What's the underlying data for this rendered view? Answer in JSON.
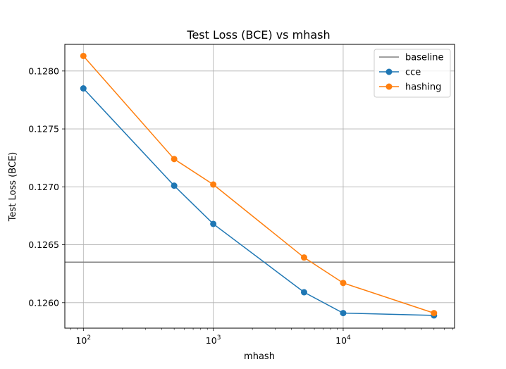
{
  "chart_data": {
    "type": "line",
    "title": "Test Loss (BCE) vs mhash",
    "xlabel": "mhash",
    "ylabel": "Test Loss (BCE)",
    "xscale": "log",
    "xlim": [
      72,
      72000
    ],
    "ylim": [
      0.12578,
      0.12823
    ],
    "x_ticks": [
      {
        "value": 100,
        "base": "10",
        "exp": "2"
      },
      {
        "value": 1000,
        "base": "10",
        "exp": "3"
      },
      {
        "value": 10000,
        "base": "10",
        "exp": "4"
      }
    ],
    "y_ticks": [
      {
        "value": 0.126,
        "label": "0.1260"
      },
      {
        "value": 0.1265,
        "label": "0.1265"
      },
      {
        "value": 0.127,
        "label": "0.1270"
      },
      {
        "value": 0.1275,
        "label": "0.1275"
      },
      {
        "value": 0.128,
        "label": "0.1280"
      }
    ],
    "grid": true,
    "legend_position": "upper-right",
    "baseline": {
      "name": "baseline",
      "value": 0.12635,
      "color": "#808080"
    },
    "series": [
      {
        "name": "cce",
        "color": "#1f77b4",
        "x": [
          100,
          500,
          1000,
          5000,
          10000,
          50000
        ],
        "y": [
          0.12785,
          0.12701,
          0.12668,
          0.12609,
          0.12591,
          0.12589
        ]
      },
      {
        "name": "hashing",
        "color": "#ff7f0e",
        "x": [
          100,
          500,
          1000,
          5000,
          10000,
          50000
        ],
        "y": [
          0.12813,
          0.12724,
          0.12702,
          0.12639,
          0.12617,
          0.12591
        ]
      }
    ]
  }
}
